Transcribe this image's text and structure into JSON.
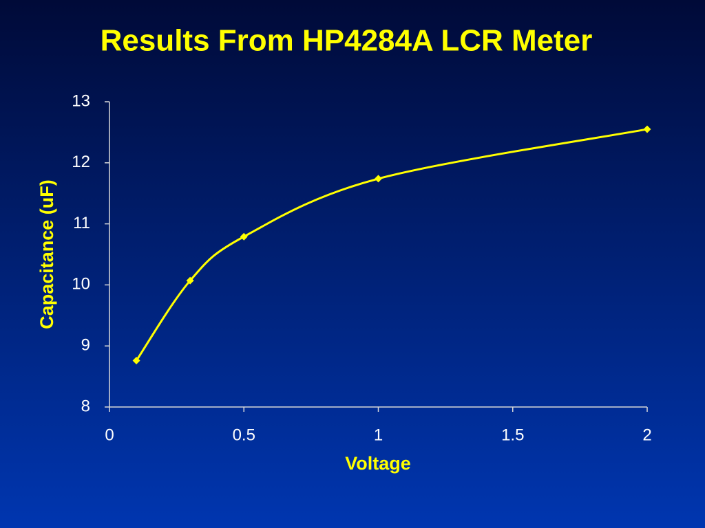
{
  "chart_data": {
    "type": "line",
    "title": "Results From HP4284A LCR Meter",
    "x_label": "Voltage",
    "y_label": "Capacitance (uF)",
    "x": [
      0.1,
      0.3,
      0.5,
      1,
      2
    ],
    "values": [
      8.76,
      10.07,
      10.79,
      11.74,
      12.55
    ],
    "color": "#ffff00",
    "xlim": [
      0,
      2
    ],
    "xticks": [
      0,
      0.5,
      1,
      1.5,
      2
    ],
    "ylim": [
      8,
      13
    ],
    "yticks": [
      8,
      9,
      10,
      11,
      12,
      13
    ],
    "smooth": true,
    "markers": "diamond"
  }
}
